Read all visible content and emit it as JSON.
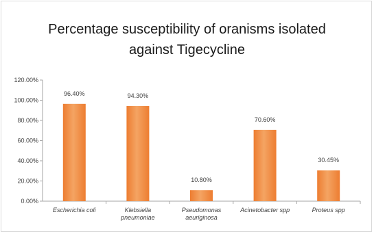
{
  "chart_data": {
    "type": "bar",
    "title": "Percentage susceptibility of oranisms isolated against Tigecycline",
    "title_lines": [
      "Percentage susceptibility of oranisms isolated",
      "against Tigecycline"
    ],
    "categories": [
      "Escherichia coli",
      "Klebsiella pneumoniae",
      "Pseudomonas aeuriginosa",
      "Acinetobacter spp",
      "Proteus spp"
    ],
    "category_lines": [
      [
        "Escherichia coli"
      ],
      [
        "Klebsiella",
        "pneumoniae"
      ],
      [
        "Pseudomonas",
        "aeuriginosa"
      ],
      [
        "Acinetobacter spp"
      ],
      [
        "Proteus spp"
      ]
    ],
    "values": [
      96.4,
      94.3,
      10.8,
      70.6,
      30.45
    ],
    "data_labels": [
      "96.40%",
      "94.30%",
      "10.80%",
      "70.60%",
      "30.45%"
    ],
    "y_ticks": [
      0,
      20,
      40,
      60,
      80,
      100,
      120
    ],
    "y_tick_labels": [
      "0.00%",
      "20.00%",
      "40.00%",
      "60.00%",
      "80.00%",
      "100.00%",
      "120.00%"
    ],
    "ylim": [
      0,
      120
    ],
    "xlabel": "",
    "ylabel": "",
    "grid": false,
    "legend": "none",
    "bar_color": "#ed7d31",
    "bar_color_light": "#f4a463",
    "axis_color": "#a6a6a6"
  }
}
